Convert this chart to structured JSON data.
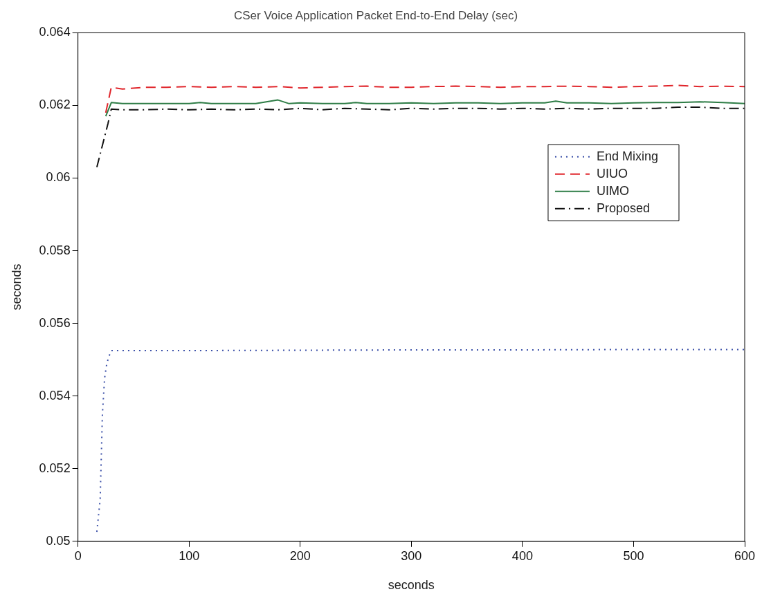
{
  "chart_data": {
    "type": "line",
    "title": "CSer Voice Application Packet End-to-End Delay (sec)",
    "xlabel": "seconds",
    "ylabel": "seconds",
    "xlim": [
      0,
      600
    ],
    "xticks": [
      0,
      100,
      200,
      300,
      400,
      500,
      600
    ],
    "ylim": [
      0.05,
      0.064
    ],
    "yticks": [
      0.05,
      0.052,
      0.054,
      0.056,
      0.058,
      0.06,
      0.062,
      0.064
    ],
    "grid": false,
    "legend": "right",
    "marker": "none",
    "series": [
      {
        "name": "End Mixing",
        "color": "#3a4fa8",
        "line_style": "dotted",
        "x": [
          17,
          20,
          22,
          24,
          26,
          28,
          30,
          40,
          100,
          200,
          300,
          400,
          500,
          600
        ],
        "values": [
          0.05026,
          0.05116,
          0.0535,
          0.0545,
          0.0549,
          0.0551,
          0.05525,
          0.05525,
          0.05525,
          0.05526,
          0.05527,
          0.05527,
          0.05528,
          0.05528
        ]
      },
      {
        "name": "UIUO",
        "color": "#e0252b",
        "line_style": "dashed",
        "x": [
          25,
          30,
          40,
          60,
          80,
          100,
          120,
          140,
          160,
          180,
          200,
          220,
          240,
          260,
          280,
          300,
          320,
          340,
          360,
          380,
          400,
          420,
          440,
          460,
          480,
          500,
          520,
          540,
          560,
          580,
          600
        ],
        "values": [
          0.0618,
          0.0625,
          0.06245,
          0.0625,
          0.0625,
          0.06252,
          0.0625,
          0.06252,
          0.0625,
          0.06252,
          0.06248,
          0.0625,
          0.06252,
          0.06253,
          0.0625,
          0.0625,
          0.06252,
          0.06253,
          0.06252,
          0.0625,
          0.06252,
          0.06252,
          0.06253,
          0.06252,
          0.0625,
          0.06252,
          0.06253,
          0.06255,
          0.06252,
          0.06253,
          0.06252
        ]
      },
      {
        "name": "UIMO",
        "color": "#2e7d46",
        "line_style": "solid",
        "x": [
          25,
          30,
          40,
          60,
          80,
          100,
          110,
          120,
          140,
          160,
          180,
          190,
          200,
          220,
          240,
          250,
          260,
          280,
          300,
          320,
          340,
          360,
          380,
          400,
          420,
          430,
          440,
          460,
          480,
          500,
          520,
          540,
          560,
          580,
          600
        ],
        "values": [
          0.0617,
          0.06208,
          0.06205,
          0.06205,
          0.06205,
          0.06205,
          0.06208,
          0.06205,
          0.06205,
          0.06205,
          0.06215,
          0.06205,
          0.06207,
          0.06205,
          0.06205,
          0.06208,
          0.06205,
          0.06205,
          0.06207,
          0.06205,
          0.06207,
          0.06207,
          0.06205,
          0.06207,
          0.06207,
          0.06212,
          0.06207,
          0.06207,
          0.06205,
          0.06207,
          0.06208,
          0.06208,
          0.0621,
          0.06208,
          0.06205
        ]
      },
      {
        "name": "Proposed",
        "color": "#111111",
        "line_style": "dashdot",
        "x": [
          17,
          22,
          27,
          30,
          40,
          60,
          80,
          100,
          120,
          140,
          160,
          180,
          200,
          220,
          240,
          260,
          280,
          300,
          320,
          340,
          360,
          380,
          400,
          420,
          440,
          460,
          480,
          500,
          520,
          540,
          560,
          580,
          600
        ],
        "values": [
          0.0603,
          0.0609,
          0.0615,
          0.0619,
          0.06188,
          0.06188,
          0.0619,
          0.06188,
          0.0619,
          0.06188,
          0.0619,
          0.06188,
          0.06192,
          0.06188,
          0.06192,
          0.0619,
          0.06188,
          0.06192,
          0.0619,
          0.06192,
          0.06192,
          0.0619,
          0.06192,
          0.0619,
          0.06192,
          0.0619,
          0.06192,
          0.06192,
          0.06192,
          0.06195,
          0.06195,
          0.06192,
          0.06192
        ]
      }
    ]
  }
}
